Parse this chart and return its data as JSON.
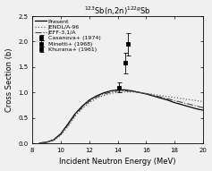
{
  "title": "$^{123}$Sb(n,2n)$^{122g}$Sb",
  "xlabel": "Incident Neutron Energy (MeV)",
  "ylabel": "Cross Section (b)",
  "xlim": [
    8,
    20
  ],
  "ylim": [
    0,
    2.5
  ],
  "xticks": [
    8,
    10,
    12,
    14,
    16,
    18,
    20
  ],
  "yticks": [
    0.0,
    0.5,
    1.0,
    1.5,
    2.0,
    2.5
  ],
  "curve_present": {
    "x": [
      8.5,
      9.0,
      9.5,
      10.0,
      10.5,
      11.0,
      11.5,
      12.0,
      12.5,
      13.0,
      13.5,
      14.0,
      14.5,
      15.0,
      15.5,
      16.0,
      16.5,
      17.0,
      17.5,
      18.0,
      18.5,
      19.0,
      19.5,
      20.0
    ],
    "y": [
      0.005,
      0.02,
      0.07,
      0.19,
      0.38,
      0.58,
      0.73,
      0.85,
      0.93,
      0.99,
      1.03,
      1.05,
      1.05,
      1.03,
      1.0,
      0.97,
      0.93,
      0.89,
      0.85,
      0.8,
      0.76,
      0.72,
      0.68,
      0.65
    ],
    "style": "solid",
    "color": "#000000",
    "linewidth": 0.9,
    "label": "Present"
  },
  "curve_jendl": {
    "x": [
      8.5,
      9.0,
      9.5,
      10.0,
      10.5,
      11.0,
      11.5,
      12.0,
      12.5,
      13.0,
      13.5,
      14.0,
      14.5,
      15.0,
      15.5,
      16.0,
      16.5,
      17.0,
      17.5,
      18.0,
      18.5,
      19.0,
      19.5,
      20.0
    ],
    "y": [
      0.003,
      0.015,
      0.055,
      0.16,
      0.33,
      0.53,
      0.68,
      0.8,
      0.88,
      0.94,
      0.98,
      1.0,
      1.01,
      1.01,
      1.0,
      0.98,
      0.96,
      0.94,
      0.92,
      0.9,
      0.88,
      0.86,
      0.84,
      0.82
    ],
    "style": "dotted",
    "color": "#666666",
    "linewidth": 0.9,
    "label": "JENDL/A-96"
  },
  "curve_jeff": {
    "x": [
      8.5,
      9.0,
      9.5,
      10.0,
      10.5,
      11.0,
      11.5,
      12.0,
      12.5,
      13.0,
      13.5,
      14.0,
      14.5,
      15.0,
      15.5,
      16.0,
      16.5,
      17.0,
      17.5,
      18.0,
      18.5,
      19.0,
      19.5,
      20.0
    ],
    "y": [
      0.004,
      0.018,
      0.062,
      0.175,
      0.355,
      0.555,
      0.705,
      0.825,
      0.905,
      0.965,
      1.005,
      1.025,
      1.03,
      1.02,
      1.0,
      0.975,
      0.945,
      0.91,
      0.875,
      0.84,
      0.805,
      0.77,
      0.735,
      0.7
    ],
    "style": "dashdot",
    "color": "#444444",
    "linewidth": 0.8,
    "label": "JEFF-3.1/A"
  },
  "data_casanova": {
    "x": [
      14.1
    ],
    "y": [
      1.1
    ],
    "yerr": [
      0.09
    ],
    "label": "Casanova+ (1974)",
    "marker": "s",
    "color": "#000000"
  },
  "data_minetti": {
    "x": [
      14.5
    ],
    "y": [
      1.58
    ],
    "yerr": [
      0.2
    ],
    "label": "Minetti+ (1968)",
    "marker": "s",
    "color": "#000000"
  },
  "data_khurana": {
    "x": [
      14.7
    ],
    "y": [
      1.95
    ],
    "yerr": [
      0.22
    ],
    "label": "Khurana+ (1961)",
    "marker": "s",
    "color": "#000000"
  },
  "background_color": "#f0f0f0",
  "title_fontsize": 6,
  "axis_fontsize": 6,
  "tick_fontsize": 5,
  "legend_fontsize": 4.5
}
